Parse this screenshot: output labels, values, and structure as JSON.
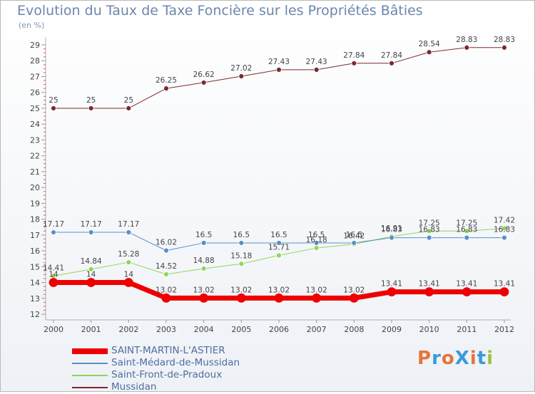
{
  "title": "Evolution du Taux de Taxe Foncière sur les Propriétés Bâties",
  "subtitle": "(en %)",
  "logo": {
    "text": "ProXiti",
    "colors": [
      "#e8733a",
      "#3a9bd8",
      "#e8733a",
      "#3a9bd8",
      "#e8733a",
      "#3a9bd8",
      "#9bc43a"
    ]
  },
  "chart_data": {
    "type": "line",
    "x": [
      "2000",
      "2001",
      "2002",
      "2003",
      "2004",
      "2005",
      "2006",
      "2007",
      "2008",
      "2009",
      "2010",
      "2011",
      "2012"
    ],
    "ylim": [
      12,
      29
    ],
    "yticks": [
      12,
      13,
      14,
      15,
      16,
      17,
      18,
      19,
      20,
      21,
      22,
      23,
      24,
      25,
      26,
      27,
      28,
      29
    ],
    "grid": false,
    "legend_position": "bottom-left",
    "series": [
      {
        "name": "SAINT-MARTIN-L'ASTIER",
        "color": "#ee0000",
        "width": 7,
        "values": [
          14,
          14,
          14,
          13.02,
          13.02,
          13.02,
          13.02,
          13.02,
          13.02,
          13.41,
          13.41,
          13.41,
          13.41
        ],
        "labels": [
          "14",
          "14",
          "14",
          "13.02",
          "13.02",
          "13.02",
          "13.02",
          "13.02",
          "13.02",
          "13.41",
          "13.41",
          "13.41",
          "13.41"
        ]
      },
      {
        "name": "Saint-Médard-de-Mussidan",
        "color": "#5b8fc7",
        "width": 1,
        "values": [
          17.17,
          17.17,
          17.17,
          16.02,
          16.5,
          16.5,
          16.5,
          16.5,
          16.5,
          16.83,
          16.83,
          16.83,
          16.83
        ],
        "labels": [
          "17.17",
          "17.17",
          "17.17",
          "16.02",
          "16.5",
          "16.5",
          "16.5",
          "16.5",
          "16.5",
          "16.83",
          "16.83",
          "16.83",
          "16.83"
        ]
      },
      {
        "name": "Saint-Front-de-Pradoux",
        "color": "#8fd65a",
        "width": 1,
        "values": [
          14.41,
          14.84,
          15.28,
          14.52,
          14.88,
          15.18,
          15.71,
          16.18,
          16.42,
          16.91,
          17.25,
          17.25,
          17.42
        ],
        "labels": [
          "14.41",
          "14.84",
          "15.28",
          "14.52",
          "14.88",
          "15.18",
          "15.71",
          "16.18",
          "16.42",
          "16.91",
          "17.25",
          "17.25",
          "17.42"
        ]
      },
      {
        "name": "Mussidan",
        "color": "#7a2a2e",
        "width": 1,
        "values": [
          25,
          25,
          25,
          26.25,
          26.62,
          27.02,
          27.43,
          27.43,
          27.84,
          27.84,
          28.54,
          28.83,
          28.83
        ],
        "labels": [
          "25",
          "25",
          "25",
          "26.25",
          "26.62",
          "27.02",
          "27.43",
          "27.43",
          "27.84",
          "27.84",
          "28.54",
          "28.83",
          "28.83"
        ]
      }
    ]
  }
}
